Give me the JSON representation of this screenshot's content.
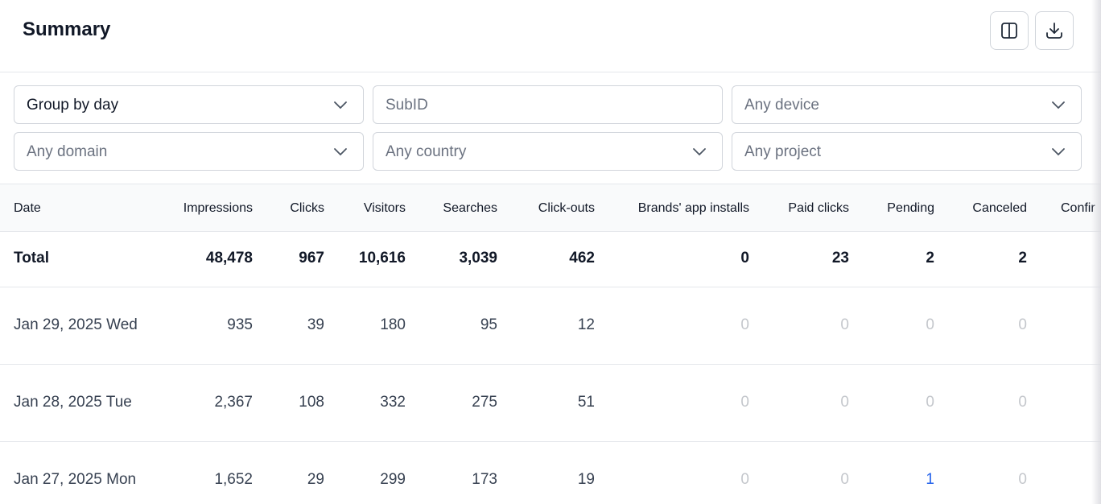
{
  "header": {
    "title": "Summary",
    "columns_icon": "columns-icon",
    "download_icon": "download-icon"
  },
  "filters": {
    "group_by": "Group by day",
    "subid_placeholder": "SubID",
    "device": "Any device",
    "domain": "Any domain",
    "country": "Any country",
    "project": "Any project"
  },
  "table": {
    "columns": [
      "Date",
      "Impressions",
      "Clicks",
      "Visitors",
      "Searches",
      "Click-outs",
      "Brands' app installs",
      "Paid clicks",
      "Pending",
      "Canceled",
      "Confir"
    ],
    "total": [
      "Total",
      "48,478",
      "967",
      "10,616",
      "3,039",
      "462",
      "0",
      "23",
      "2",
      "2"
    ],
    "rows": [
      [
        "Jan 29, 2025 Wed",
        "935",
        "39",
        "180",
        "95",
        "12",
        "0",
        "0",
        "0",
        "0"
      ],
      [
        "Jan 28, 2025 Tue",
        "2,367",
        "108",
        "332",
        "275",
        "51",
        "0",
        "0",
        "0",
        "0"
      ],
      [
        "Jan 27, 2025 Mon",
        "1,652",
        "29",
        "299",
        "173",
        "19",
        "0",
        "0",
        "1",
        "0"
      ]
    ]
  },
  "colors": {
    "link": "#2563eb",
    "zero": "#c4c7cc",
    "border": "#e5e7eb"
  }
}
